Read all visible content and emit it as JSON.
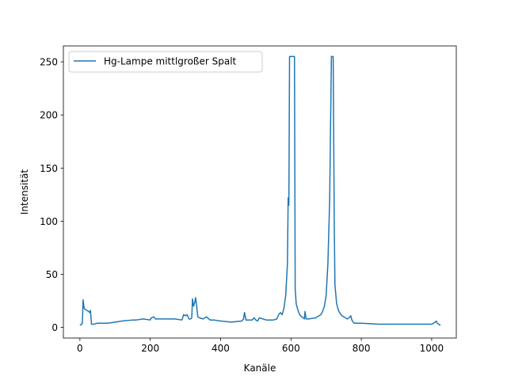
{
  "chart_data": {
    "type": "line",
    "xlabel": "Kanäle",
    "ylabel": "Intensität",
    "xlim": [
      -47,
      1070
    ],
    "ylim": [
      -10,
      265
    ],
    "xticks": [
      0,
      200,
      400,
      600,
      800,
      1000
    ],
    "yticks": [
      0,
      50,
      100,
      150,
      200,
      250
    ],
    "grid": false,
    "legend_position": "top-left",
    "series": [
      {
        "name": "Hg-Lampe mittlgroßer Spalt",
        "color": "#1f77b4",
        "x": [
          0,
          5,
          7,
          9,
          12,
          15,
          20,
          25,
          28,
          30,
          33,
          40,
          50,
          60,
          80,
          100,
          120,
          150,
          160,
          180,
          200,
          203,
          210,
          215,
          225,
          250,
          270,
          290,
          295,
          300,
          305,
          310,
          315,
          318,
          320,
          323,
          326,
          329,
          332,
          335,
          340,
          350,
          355,
          360,
          370,
          380,
          400,
          430,
          460,
          465,
          468,
          472,
          480,
          490,
          495,
          500,
          505,
          510,
          530,
          550,
          560,
          565,
          570,
          575,
          580,
          585,
          590,
          592,
          594,
          596,
          598,
          600,
          605,
          610,
          612,
          615,
          620,
          625,
          630,
          635,
          638,
          640,
          643,
          650,
          670,
          685,
          690,
          695,
          700,
          705,
          710,
          715,
          718,
          720,
          723,
          725,
          730,
          735,
          740,
          745,
          750,
          755,
          760,
          765,
          770,
          773,
          777,
          780,
          790,
          800,
          850,
          900,
          950,
          1000,
          1005,
          1010,
          1013,
          1016,
          1020,
          1025
        ],
        "y": [
          2,
          3,
          4,
          26,
          18,
          17,
          16,
          15,
          14,
          16,
          3,
          3,
          4,
          4,
          4,
          5,
          6,
          7,
          7,
          8,
          7,
          9,
          10,
          8,
          8,
          8,
          8,
          7,
          12,
          11,
          12,
          8,
          8,
          9,
          27,
          20,
          23,
          28,
          20,
          10,
          9,
          8,
          9,
          10,
          7,
          7,
          6,
          5,
          6,
          8,
          14,
          7,
          7,
          7,
          9,
          7,
          6,
          9,
          7,
          7,
          8,
          12,
          14,
          12,
          18,
          30,
          60,
          122,
          115,
          255,
          255,
          255,
          255,
          255,
          36,
          22,
          16,
          12,
          10,
          9,
          8,
          15,
          8,
          8,
          9,
          12,
          15,
          20,
          30,
          60,
          120,
          255,
          255,
          255,
          100,
          40,
          22,
          16,
          13,
          11,
          10,
          9,
          8,
          9,
          11,
          7,
          5,
          4,
          4,
          4,
          3,
          3,
          3,
          3,
          4,
          5,
          6,
          4,
          3,
          2
        ]
      }
    ]
  }
}
